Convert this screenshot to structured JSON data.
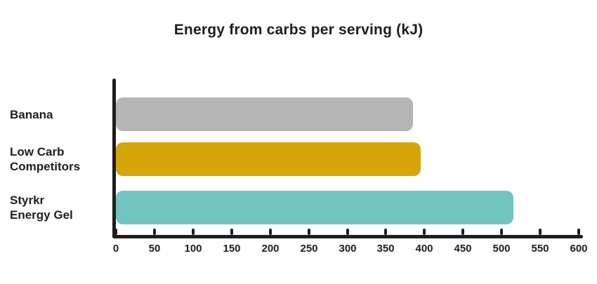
{
  "title": "Energy from carbs per serving (kJ)",
  "colors": {
    "background": "#ffffff",
    "axis": "#1e1e1e",
    "text": "#1e1e1e",
    "banana_bar": "#b5b5b5",
    "low_carb_bar": "#d6a50a",
    "styrkr_bar": "#70c5c1"
  },
  "chart_data": {
    "type": "bar",
    "orientation": "horizontal",
    "title": "Energy from carbs per serving (kJ)",
    "categories": [
      "Banana",
      "Low Carb Competitors",
      "Styrkr Energy Gel"
    ],
    "category_lines": [
      [
        "Banana"
      ],
      [
        "Low Carb",
        "Competitors"
      ],
      [
        "Styrkr",
        "Energy Gel"
      ]
    ],
    "values": [
      385,
      395,
      515
    ],
    "bar_colors": [
      "#b5b5b5",
      "#d6a50a",
      "#70c5c1"
    ],
    "xlabel": "",
    "ylabel": "",
    "xlim": [
      0,
      600
    ],
    "x_ticks": [
      0,
      50,
      100,
      150,
      200,
      250,
      300,
      350,
      400,
      450,
      500,
      550,
      600
    ],
    "grid": false,
    "legend": false
  }
}
